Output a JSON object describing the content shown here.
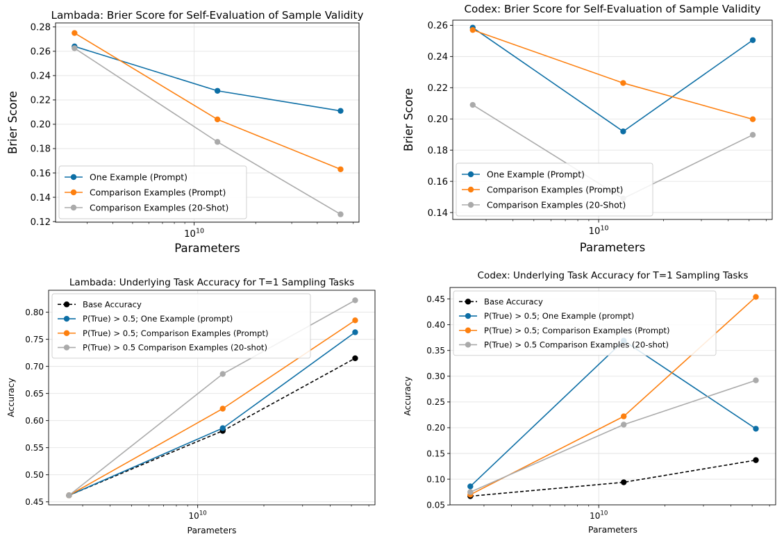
{
  "chart_data": [
    {
      "type": "line",
      "title": "Lambada: Brier Score for Self-Evaluation of Sample Validity",
      "xlabel": "Parameters",
      "ylabel": "Brier Score",
      "x_scale": "log",
      "x_major_tick": {
        "value": 10000000000,
        "label_base": "10",
        "label_exp": "10"
      },
      "x": [
        2600000000,
        13000000000,
        52000000000
      ],
      "xlim": [
        2100000000,
        64000000000
      ],
      "ylim": [
        0.1195,
        0.2833
      ],
      "yticks": [
        0.12,
        0.14,
        0.16,
        0.18,
        0.2,
        0.22,
        0.24,
        0.26,
        0.28
      ],
      "ytick_labels": [
        "0.12",
        "0.14",
        "0.16",
        "0.18",
        "0.20",
        "0.22",
        "0.24",
        "0.26",
        "0.28"
      ],
      "grid": true,
      "legend_position": "lower-left",
      "series": [
        {
          "name": "One Example (Prompt)",
          "color": "#0c6ea5",
          "dashed": false,
          "values": [
            0.264,
            0.2275,
            0.211
          ]
        },
        {
          "name": "Comparison Examples (Prompt)",
          "color": "#fd7f0e",
          "dashed": false,
          "values": [
            0.275,
            0.204,
            0.163
          ]
        },
        {
          "name": "Comparison Examples (20-Shot)",
          "color": "#aaaaaa",
          "dashed": false,
          "values": [
            0.2625,
            0.1855,
            0.126
          ]
        }
      ]
    },
    {
      "type": "line",
      "title": "Codex: Brier Score for Self-Evaluation of Sample Validity",
      "xlabel": "Parameters",
      "ylabel": "Brier Score",
      "x_scale": "log",
      "x_major_tick": {
        "value": 10000000000,
        "label_base": "10",
        "label_exp": "10"
      },
      "x": [
        2600000000,
        13000000000,
        52000000000
      ],
      "xlim": [
        2100000000,
        64000000000
      ],
      "ylim": [
        0.1356,
        0.2633
      ],
      "yticks": [
        0.14,
        0.16,
        0.18,
        0.2,
        0.22,
        0.24,
        0.26
      ],
      "ytick_labels": [
        "0.14",
        "0.16",
        "0.18",
        "0.20",
        "0.22",
        "0.24",
        "0.26"
      ],
      "grid": true,
      "legend_position": "lower-left",
      "series": [
        {
          "name": "One Example (Prompt)",
          "color": "#0c6ea5",
          "dashed": false,
          "values": [
            0.2585,
            0.192,
            0.2505
          ]
        },
        {
          "name": "Comparison Examples (Prompt)",
          "color": "#fd7f0e",
          "dashed": false,
          "values": [
            0.257,
            0.223,
            0.1998
          ]
        },
        {
          "name": "Comparison Examples (20-Shot)",
          "color": "#aaaaaa",
          "dashed": false,
          "values": [
            0.209,
            0.149,
            0.1898
          ]
        }
      ]
    },
    {
      "type": "line",
      "title": "Lambada: Underlying Task Accuracy for T=1 Sampling Tasks",
      "xlabel": "Parameters",
      "ylabel": "Accuracy",
      "x_scale": "log",
      "x_major_tick": {
        "value": 10000000000,
        "label_base": "10",
        "label_exp": "10"
      },
      "x": [
        2600000000,
        13000000000,
        52000000000
      ],
      "xlim": [
        2100000000,
        64000000000
      ],
      "ylim": [
        0.4445,
        0.8405
      ],
      "yticks": [
        0.45,
        0.5,
        0.55,
        0.6,
        0.65,
        0.7,
        0.75,
        0.8
      ],
      "ytick_labels": [
        "0.45",
        "0.50",
        "0.55",
        "0.60",
        "0.65",
        "0.70",
        "0.75",
        "0.80"
      ],
      "grid": true,
      "legend_position": "upper-left",
      "series": [
        {
          "name": "Base Accuracy",
          "color": "#000000",
          "dashed": true,
          "values": [
            0.462,
            0.581,
            0.715
          ]
        },
        {
          "name": "P(True) > 0.5; One Example (prompt)",
          "color": "#0c6ea5",
          "dashed": false,
          "values": [
            0.462,
            0.586,
            0.763
          ]
        },
        {
          "name": "P(True) > 0.5; Comparison Examples (Prompt)",
          "color": "#fd7f0e",
          "dashed": false,
          "values": [
            0.462,
            0.622,
            0.785
          ]
        },
        {
          "name": "P(True) > 0.5 Comparison Examples (20-shot)",
          "color": "#aaaaaa",
          "dashed": false,
          "values": [
            0.462,
            0.686,
            0.822
          ]
        }
      ]
    },
    {
      "type": "line",
      "title": "Codex: Underlying Task Accuracy for T=1 Sampling Tasks",
      "xlabel": "Parameters",
      "ylabel": "Accuracy",
      "x_scale": "log",
      "x_major_tick": {
        "value": 10000000000,
        "label_base": "10",
        "label_exp": "10"
      },
      "x": [
        2600000000,
        13000000000,
        52000000000
      ],
      "xlim": [
        2100000000,
        64000000000
      ],
      "ylim": [
        0.0502,
        0.4723
      ],
      "yticks": [
        0.05,
        0.1,
        0.15,
        0.2,
        0.25,
        0.3,
        0.35,
        0.4,
        0.45
      ],
      "ytick_labels": [
        "0.05",
        "0.10",
        "0.15",
        "0.20",
        "0.25",
        "0.30",
        "0.35",
        "0.40",
        "0.45"
      ],
      "grid": true,
      "legend_position": "upper-left",
      "series": [
        {
          "name": "Base Accuracy",
          "color": "#000000",
          "dashed": true,
          "values": [
            0.067,
            0.094,
            0.137
          ]
        },
        {
          "name": "P(True) > 0.5; One Example (prompt)",
          "color": "#0c6ea5",
          "dashed": false,
          "values": [
            0.086,
            0.369,
            0.198
          ]
        },
        {
          "name": "P(True) > 0.5; Comparison Examples (Prompt)",
          "color": "#fd7f0e",
          "dashed": false,
          "values": [
            0.07,
            0.222,
            0.454
          ]
        },
        {
          "name": "P(True) > 0.5 Comparison Examples (20-shot)",
          "color": "#aaaaaa",
          "dashed": false,
          "values": [
            0.075,
            0.206,
            0.292
          ]
        }
      ]
    }
  ]
}
